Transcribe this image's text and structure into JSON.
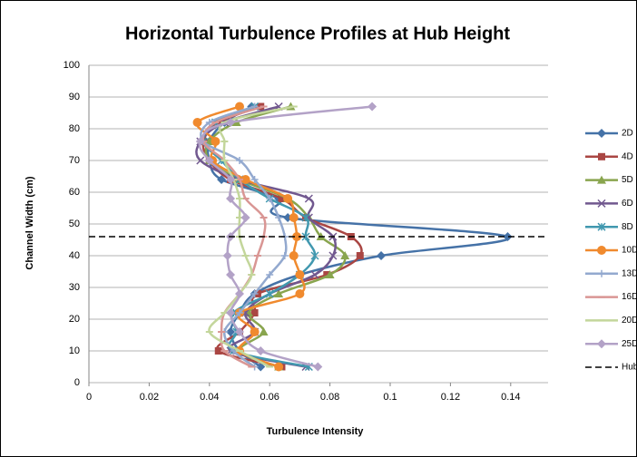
{
  "chart_data": {
    "type": "scatter",
    "title": "Horizontal Turbulence Profiles at Hub Height",
    "x_label": "Turbulence Intensity",
    "y_label": "Channel Width (cm)",
    "xlim": [
      0,
      0.15
    ],
    "xticks": [
      0,
      0.02,
      0.04,
      0.06,
      0.08,
      0.1,
      0.12,
      0.14
    ],
    "ylim": [
      0,
      100
    ],
    "yticks": [
      0,
      10,
      20,
      30,
      40,
      50,
      60,
      70,
      80,
      90,
      100
    ],
    "grid": true,
    "smooth": true,
    "legend": "right",
    "y": [
      5,
      10,
      16,
      22,
      28,
      34,
      40,
      46,
      52,
      58,
      64,
      70,
      76,
      82,
      87
    ],
    "series": [
      {
        "name": "2D",
        "color": "#4572a7",
        "marker": "diamond",
        "values": [
          0.057,
          0.05,
          0.047,
          0.05,
          0.055,
          0.07,
          0.097,
          0.139,
          0.066,
          0.063,
          0.044,
          0.04,
          0.04,
          0.045,
          0.054
        ]
      },
      {
        "name": "4D",
        "color": "#aa4643",
        "marker": "square",
        "values": [
          0.064,
          0.043,
          0.05,
          0.055,
          0.056,
          0.079,
          0.09,
          0.087,
          0.072,
          0.064,
          0.047,
          0.04,
          0.038,
          0.043,
          0.057
        ]
      },
      {
        "name": "5D",
        "color": "#89a54e",
        "marker": "triangle",
        "values": [
          0.063,
          0.05,
          0.058,
          0.053,
          0.063,
          0.08,
          0.085,
          0.077,
          0.073,
          0.066,
          0.05,
          0.04,
          0.04,
          0.049,
          0.067
        ]
      },
      {
        "name": "6D",
        "color": "#71588f",
        "marker": "x",
        "values": [
          0.072,
          0.047,
          0.055,
          0.052,
          0.06,
          0.075,
          0.081,
          0.081,
          0.073,
          0.073,
          0.05,
          0.037,
          0.037,
          0.045,
          0.063
        ]
      },
      {
        "name": "8D",
        "color": "#4198af",
        "marker": "star",
        "values": [
          0.073,
          0.048,
          0.049,
          0.048,
          0.06,
          0.07,
          0.075,
          0.072,
          0.072,
          0.06,
          0.05,
          0.044,
          0.038,
          0.042,
          0.055
        ]
      },
      {
        "name": "10D",
        "color": "#f08a2e",
        "marker": "circle",
        "values": [
          0.063,
          0.05,
          0.055,
          0.05,
          0.07,
          0.07,
          0.068,
          0.069,
          0.068,
          0.066,
          0.052,
          0.041,
          0.042,
          0.036,
          0.05
        ]
      },
      {
        "name": "13D",
        "color": "#93a9cf",
        "marker": "plus",
        "values": [
          0.055,
          0.048,
          0.045,
          0.05,
          0.055,
          0.06,
          0.065,
          0.065,
          0.063,
          0.06,
          0.055,
          0.05,
          0.038,
          0.04,
          0.055
        ]
      },
      {
        "name": "16D",
        "color": "#d99694",
        "marker": "dash",
        "values": [
          0.054,
          0.045,
          0.044,
          0.045,
          0.05,
          0.054,
          0.056,
          0.058,
          0.058,
          0.052,
          0.05,
          0.045,
          0.038,
          0.042,
          0.058
        ]
      },
      {
        "name": "20D",
        "color": "#c3d69b",
        "marker": "dash",
        "values": [
          0.06,
          0.05,
          0.04,
          0.045,
          0.05,
          0.054,
          0.052,
          0.05,
          0.05,
          0.05,
          0.048,
          0.045,
          0.045,
          0.045,
          0.068
        ]
      },
      {
        "name": "25D",
        "color": "#b3a2c7",
        "marker": "diamond",
        "values": [
          0.076,
          0.057,
          0.05,
          0.047,
          0.05,
          0.047,
          0.046,
          0.047,
          0.052,
          0.047,
          0.047,
          0.04,
          0.037,
          0.047,
          0.094
        ]
      }
    ],
    "hline": {
      "name": "Hub Height",
      "value": 46,
      "color": "#000000"
    }
  }
}
